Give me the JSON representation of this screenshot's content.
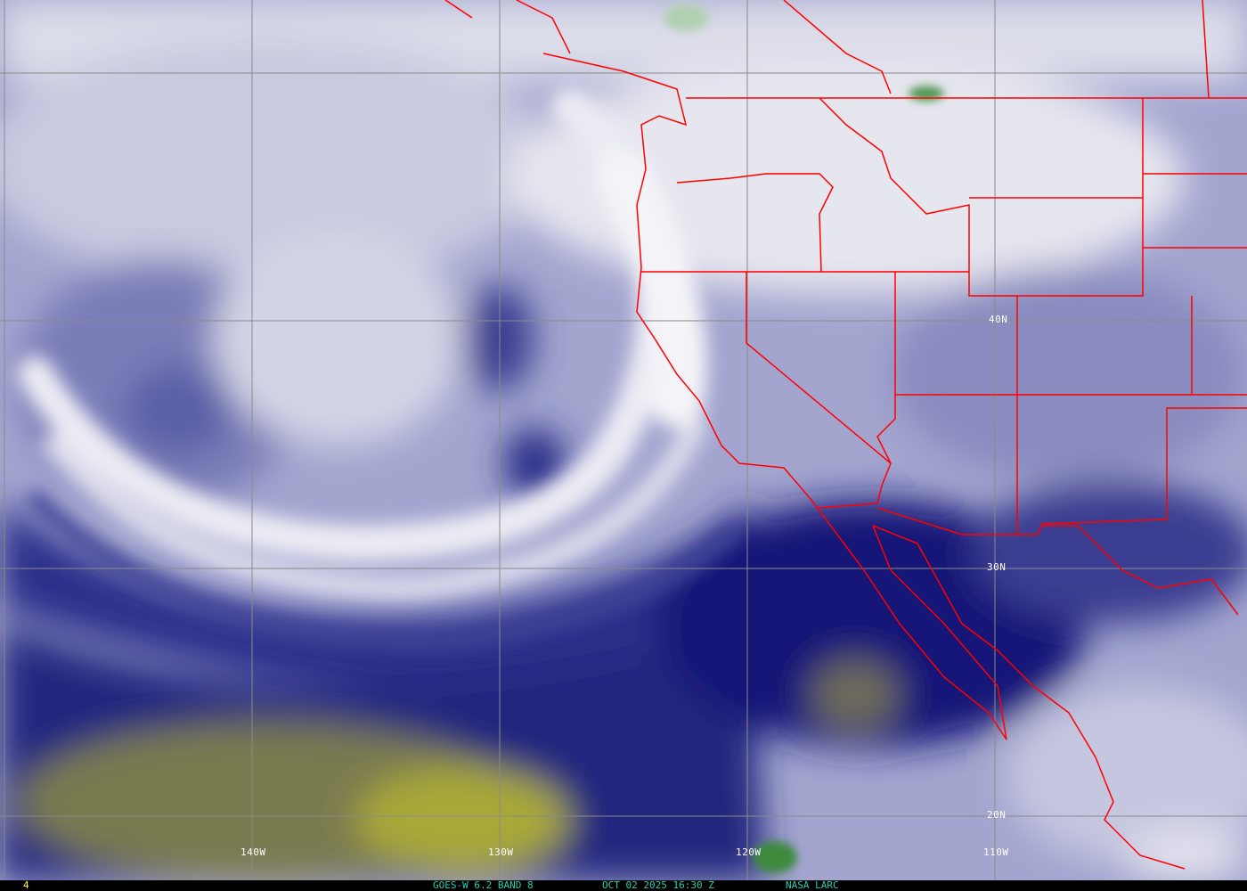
{
  "map": {
    "product": "water-vapor satellite imagery",
    "lon_labels": [
      "140W",
      "130W",
      "120W",
      "110W"
    ],
    "lat_labels": [
      "40N",
      "30N",
      "20N"
    ],
    "colors": {
      "boundaries": "#ff0000",
      "grid": "#808080",
      "dry": "#c8c040",
      "moist": "#ffffff",
      "mid": "#1a1a80"
    }
  },
  "status_bar": {
    "frame": "4",
    "satellite": "GOES-W 6.2 BAND 8",
    "datetime": "OCT 02 2025 16:30 Z",
    "credit": "NASA LARC"
  }
}
